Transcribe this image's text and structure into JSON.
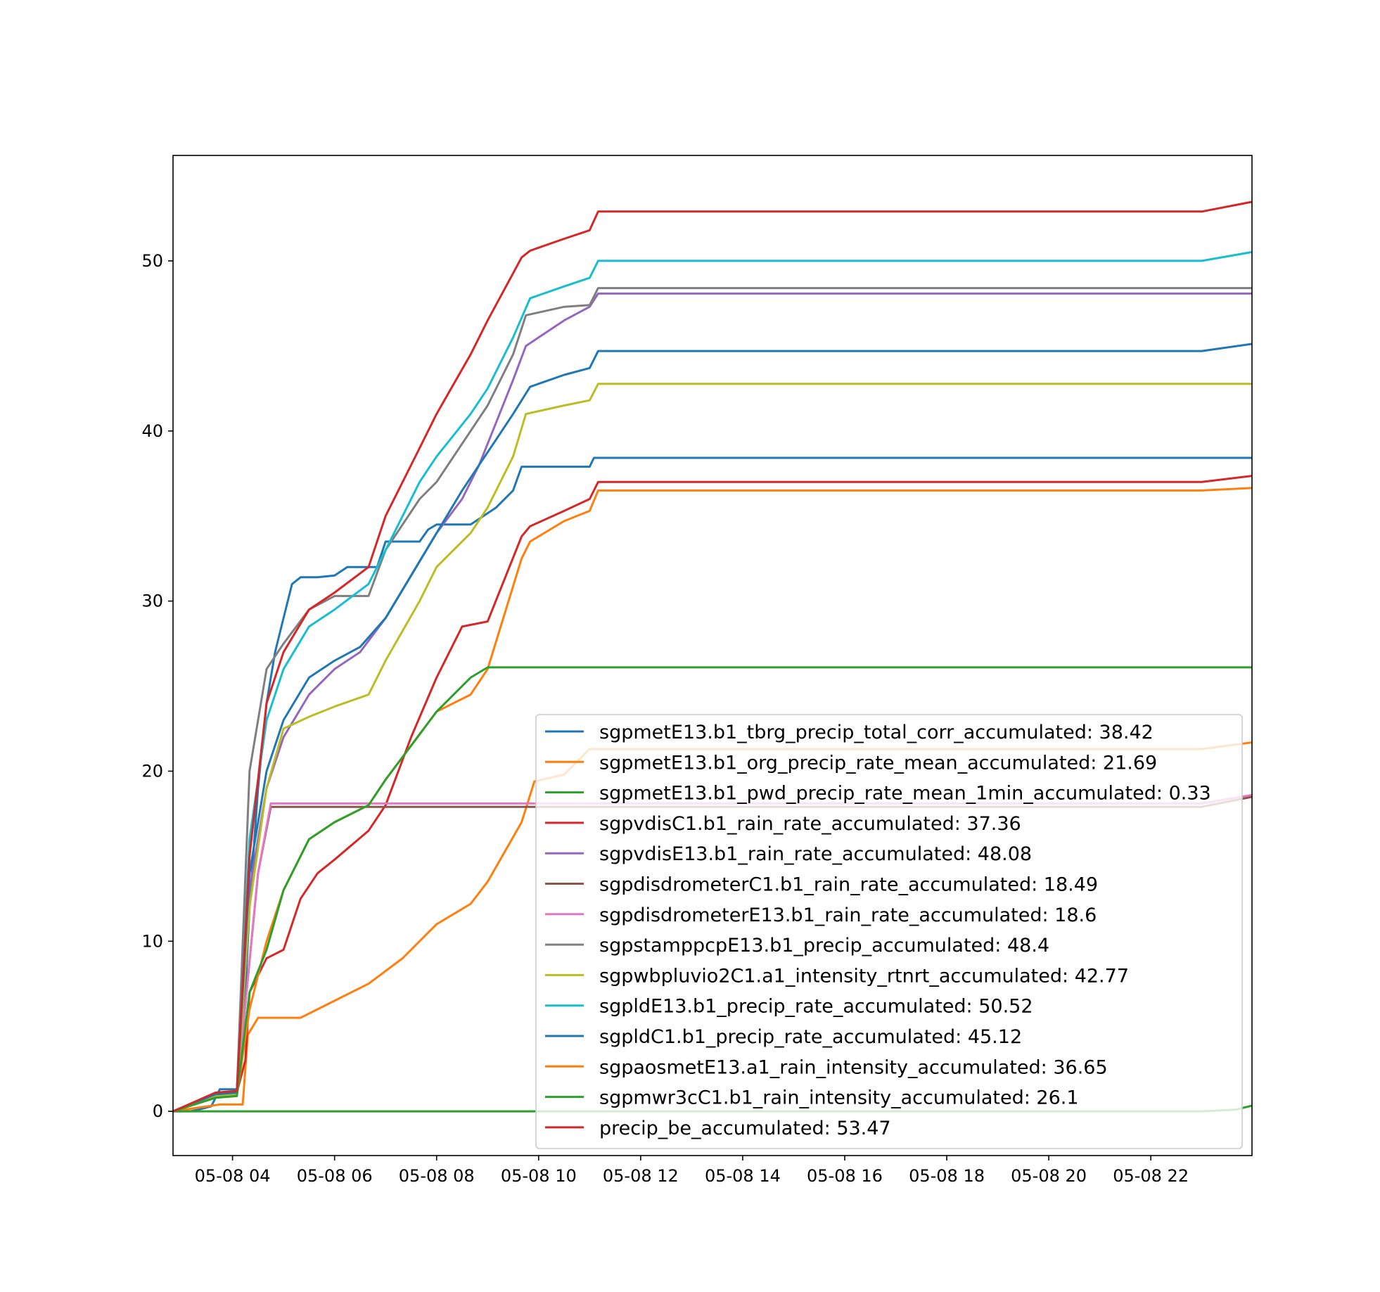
{
  "chart_data": {
    "type": "line",
    "title": "",
    "xlabel": "",
    "ylabel": "",
    "xlim": [
      "2024-05-08 02:50",
      "2024-05-08 23:59"
    ],
    "ylim": [
      -2.6,
      56.2
    ],
    "x_tick_labels": [
      "05-08 04",
      "05-08 06",
      "05-08 08",
      "05-08 10",
      "05-08 12",
      "05-08 14",
      "05-08 16",
      "05-08 18",
      "05-08 20",
      "05-08 22"
    ],
    "x_ticks": [
      "2024-05-08 04:00",
      "2024-05-08 06:00",
      "2024-05-08 08:00",
      "2024-05-08 10:00",
      "2024-05-08 12:00",
      "2024-05-08 14:00",
      "2024-05-08 16:00",
      "2024-05-08 18:00",
      "2024-05-08 20:00",
      "2024-05-08 22:00"
    ],
    "y_ticks": [
      0,
      10,
      20,
      30,
      40,
      50
    ],
    "y_tick_labels": [
      "0",
      "10",
      "20",
      "30",
      "40",
      "50"
    ],
    "grid": false,
    "legend_position": "lower-right",
    "series": [
      {
        "name": "sgpmetE13.b1_tbrg_precip_total_corr_accumulated: 38.42",
        "color": "#1f77b4",
        "x": [
          "2024-05-08 02:50",
          "2024-05-08 03:10",
          "2024-05-08 03:20",
          "2024-05-08 03:35",
          "2024-05-08 03:45",
          "2024-05-08 04:05",
          "2024-05-08 04:12",
          "2024-05-08 04:20",
          "2024-05-08 04:30",
          "2024-05-08 04:40",
          "2024-05-08 04:50",
          "2024-05-08 05:00",
          "2024-05-08 05:10",
          "2024-05-08 05:20",
          "2024-05-08 05:40",
          "2024-05-08 06:00",
          "2024-05-08 06:15",
          "2024-05-08 06:50",
          "2024-05-08 07:00",
          "2024-05-08 07:40",
          "2024-05-08 07:50",
          "2024-05-08 08:00",
          "2024-05-08 08:40",
          "2024-05-08 08:55",
          "2024-05-08 09:10",
          "2024-05-08 09:30",
          "2024-05-08 09:40",
          "2024-05-08 11:00",
          "2024-05-08 11:05",
          "2024-05-08 23:59"
        ],
        "y": [
          0,
          0,
          0.1,
          0.3,
          1.3,
          1.3,
          4,
          12,
          19,
          24,
          27,
          29,
          31,
          31.4,
          31.4,
          31.5,
          32,
          32,
          33.5,
          33.5,
          34.2,
          34.5,
          34.5,
          35,
          35.5,
          36.5,
          37.9,
          37.9,
          38.42,
          38.42
        ]
      },
      {
        "name": "sgpmetE13.b1_org_precip_rate_mean_accumulated: 21.69",
        "color": "#ff7f0e",
        "x": [
          "2024-05-08 02:50",
          "2024-05-08 03:45",
          "2024-05-08 04:12",
          "2024-05-08 04:18",
          "2024-05-08 04:30",
          "2024-05-08 05:20",
          "2024-05-08 06:00",
          "2024-05-08 06:40",
          "2024-05-08 07:20",
          "2024-05-08 08:00",
          "2024-05-08 08:40",
          "2024-05-08 09:00",
          "2024-05-08 09:40",
          "2024-05-08 09:55",
          "2024-05-08 10:30",
          "2024-05-08 11:00",
          "2024-05-08 12:00",
          "2024-05-08 23:00",
          "2024-05-08 23:59"
        ],
        "y": [
          0,
          0.4,
          0.4,
          4.5,
          5.5,
          5.5,
          6.5,
          7.5,
          9,
          11,
          12.2,
          13.5,
          17,
          19.4,
          19.8,
          21.3,
          21.3,
          21.3,
          21.69
        ]
      },
      {
        "name": "sgpmetE13.b1_pwd_precip_rate_mean_1min_accumulated: 0.33",
        "color": "#2ca02c",
        "x": [
          "2024-05-08 02:50",
          "2024-05-08 23:00",
          "2024-05-08 23:40",
          "2024-05-08 23:59"
        ],
        "y": [
          0,
          0,
          0.1,
          0.33
        ]
      },
      {
        "name": "sgpvdisC1.b1_rain_rate_accumulated: 37.36",
        "color": "#d62728",
        "x": [
          "2024-05-08 02:50",
          "2024-05-08 03:40",
          "2024-05-08 04:05",
          "2024-05-08 04:15",
          "2024-05-08 04:20",
          "2024-05-08 04:40",
          "2024-05-08 05:00",
          "2024-05-08 05:20",
          "2024-05-08 05:40",
          "2024-05-08 06:00",
          "2024-05-08 06:40",
          "2024-05-08 07:00",
          "2024-05-08 07:30",
          "2024-05-08 08:00",
          "2024-05-08 08:30",
          "2024-05-08 09:00",
          "2024-05-08 09:40",
          "2024-05-08 09:50",
          "2024-05-08 10:30",
          "2024-05-08 11:00",
          "2024-05-08 11:10",
          "2024-05-08 23:00",
          "2024-05-08 23:59"
        ],
        "y": [
          0,
          1,
          1.1,
          3,
          7,
          9,
          9.5,
          12.5,
          14,
          14.8,
          16.5,
          18,
          22,
          25.5,
          28.5,
          28.8,
          33.8,
          34.4,
          35.3,
          36,
          37,
          37,
          37.36
        ]
      },
      {
        "name": "sgpvdisE13.b1_rain_rate_accumulated: 48.08",
        "color": "#9467bd",
        "x": [
          "2024-05-08 02:50",
          "2024-05-08 03:40",
          "2024-05-08 04:05",
          "2024-05-08 04:20",
          "2024-05-08 04:40",
          "2024-05-08 05:00",
          "2024-05-08 05:30",
          "2024-05-08 06:00",
          "2024-05-08 06:30",
          "2024-05-08 07:00",
          "2024-05-08 07:30",
          "2024-05-08 08:00",
          "2024-05-08 08:30",
          "2024-05-08 08:50",
          "2024-05-08 09:10",
          "2024-05-08 09:30",
          "2024-05-08 09:45",
          "2024-05-08 10:00",
          "2024-05-08 10:30",
          "2024-05-08 11:00",
          "2024-05-08 11:10",
          "2024-05-08 23:59"
        ],
        "y": [
          0,
          1,
          1.1,
          13,
          19,
          22,
          24.5,
          26,
          27,
          29,
          31.5,
          34,
          36,
          38,
          40.5,
          43,
          45,
          45.5,
          46.5,
          47.3,
          48.08,
          48.08
        ]
      },
      {
        "name": "sgpdisdrometerC1.b1_rain_rate_accumulated: 18.49",
        "color": "#8c564b",
        "x": [
          "2024-05-08 02:50",
          "2024-05-08 03:40",
          "2024-05-08 04:05",
          "2024-05-08 04:30",
          "2024-05-08 04:45",
          "2024-05-08 23:00",
          "2024-05-08 23:59"
        ],
        "y": [
          0,
          1,
          1.1,
          14,
          17.9,
          17.9,
          18.49
        ]
      },
      {
        "name": "sgpdisdrometerE13.b1_rain_rate_accumulated: 18.6",
        "color": "#e377c2",
        "x": [
          "2024-05-08 02:50",
          "2024-05-08 03:40",
          "2024-05-08 04:05",
          "2024-05-08 04:30",
          "2024-05-08 04:45",
          "2024-05-08 23:00",
          "2024-05-08 23:59"
        ],
        "y": [
          0,
          1,
          1.1,
          14,
          18.1,
          18.1,
          18.6
        ]
      },
      {
        "name": "sgpstamppcpE13.b1_precip_accumulated: 48.4",
        "color": "#7f7f7f",
        "x": [
          "2024-05-08 02:50",
          "2024-05-08 03:40",
          "2024-05-08 04:05",
          "2024-05-08 04:20",
          "2024-05-08 04:40",
          "2024-05-08 05:00",
          "2024-05-08 05:30",
          "2024-05-08 06:00",
          "2024-05-08 06:40",
          "2024-05-08 07:00",
          "2024-05-08 07:40",
          "2024-05-08 08:00",
          "2024-05-08 08:40",
          "2024-05-08 09:00",
          "2024-05-08 09:30",
          "2024-05-08 09:45",
          "2024-05-08 10:30",
          "2024-05-08 11:00",
          "2024-05-08 11:10",
          "2024-05-08 23:59"
        ],
        "y": [
          0,
          1,
          1.1,
          20,
          26,
          27.5,
          29.5,
          30.3,
          30.3,
          33,
          36,
          37,
          40,
          41.5,
          44.5,
          46.8,
          47.3,
          47.4,
          48.4,
          48.4
        ]
      },
      {
        "name": "sgpwbpluvio2C1.a1_intensity_rtnrt_accumulated: 42.77",
        "color": "#bcbd22",
        "x": [
          "2024-05-08 02:50",
          "2024-05-08 03:40",
          "2024-05-08 04:05",
          "2024-05-08 04:20",
          "2024-05-08 04:40",
          "2024-05-08 05:00",
          "2024-05-08 05:30",
          "2024-05-08 06:00",
          "2024-05-08 06:40",
          "2024-05-08 07:00",
          "2024-05-08 07:40",
          "2024-05-08 08:00",
          "2024-05-08 08:40",
          "2024-05-08 09:00",
          "2024-05-08 09:30",
          "2024-05-08 09:45",
          "2024-05-08 10:30",
          "2024-05-08 11:00",
          "2024-05-08 11:10",
          "2024-05-08 23:59"
        ],
        "y": [
          0,
          0.9,
          1,
          12,
          19,
          22.5,
          23.2,
          23.8,
          24.5,
          26.5,
          30,
          32,
          34,
          35.5,
          38.5,
          41,
          41.5,
          41.8,
          42.77,
          42.77
        ]
      },
      {
        "name": "sgpldE13.b1_precip_rate_accumulated: 50.52",
        "color": "#17becf",
        "x": [
          "2024-05-08 02:50",
          "2024-05-08 03:40",
          "2024-05-08 04:05",
          "2024-05-08 04:20",
          "2024-05-08 04:40",
          "2024-05-08 05:00",
          "2024-05-08 05:30",
          "2024-05-08 06:00",
          "2024-05-08 06:40",
          "2024-05-08 07:00",
          "2024-05-08 07:40",
          "2024-05-08 08:00",
          "2024-05-08 08:40",
          "2024-05-08 09:00",
          "2024-05-08 09:30",
          "2024-05-08 09:50",
          "2024-05-08 10:30",
          "2024-05-08 11:00",
          "2024-05-08 11:10",
          "2024-05-08 23:00",
          "2024-05-08 23:59"
        ],
        "y": [
          0,
          1,
          1.1,
          16,
          23,
          26,
          28.5,
          29.5,
          31,
          33,
          37,
          38.5,
          41,
          42.5,
          45.5,
          47.8,
          48.5,
          49,
          50,
          50,
          50.52
        ]
      },
      {
        "name": "sgpldC1.b1_precip_rate_accumulated: 45.12",
        "color": "#1f77b4",
        "x": [
          "2024-05-08 02:50",
          "2024-05-08 03:40",
          "2024-05-08 04:05",
          "2024-05-08 04:20",
          "2024-05-08 04:40",
          "2024-05-08 05:00",
          "2024-05-08 05:30",
          "2024-05-08 06:00",
          "2024-05-08 06:30",
          "2024-05-08 07:00",
          "2024-05-08 07:30",
          "2024-05-08 08:00",
          "2024-05-08 08:30",
          "2024-05-08 08:50",
          "2024-05-08 09:10",
          "2024-05-08 09:30",
          "2024-05-08 09:50",
          "2024-05-08 10:30",
          "2024-05-08 11:00",
          "2024-05-08 11:10",
          "2024-05-08 23:00",
          "2024-05-08 23:59"
        ],
        "y": [
          0,
          1,
          1.1,
          14,
          20,
          23,
          25.5,
          26.5,
          27.3,
          29,
          31.5,
          34,
          36.5,
          38,
          39.5,
          41,
          42.6,
          43.3,
          43.7,
          44.7,
          44.7,
          45.12
        ]
      },
      {
        "name": "sgpaosmetE13.a1_rain_intensity_accumulated: 36.65",
        "color": "#ff7f0e",
        "x": [
          "2024-05-08 02:50",
          "2024-05-08 03:40",
          "2024-05-08 04:05",
          "2024-05-08 04:20",
          "2024-05-08 04:40",
          "2024-05-08 05:00",
          "2024-05-08 05:30",
          "2024-05-08 06:00",
          "2024-05-08 06:40",
          "2024-05-08 07:00",
          "2024-05-08 07:30",
          "2024-05-08 08:00",
          "2024-05-08 08:40",
          "2024-05-08 09:00",
          "2024-05-08 09:40",
          "2024-05-08 09:50",
          "2024-05-08 10:30",
          "2024-05-08 11:00",
          "2024-05-08 11:10",
          "2024-05-08 23:00",
          "2024-05-08 23:59"
        ],
        "y": [
          0,
          0.8,
          0.9,
          6,
          10,
          13,
          16,
          17,
          18,
          19.5,
          21.5,
          23.5,
          24.5,
          26,
          32.5,
          33.5,
          34.7,
          35.3,
          36.5,
          36.5,
          36.65
        ]
      },
      {
        "name": "sgpmwr3cC1.b1_rain_intensity_accumulated: 26.1",
        "color": "#2ca02c",
        "x": [
          "2024-05-08 02:50",
          "2024-05-08 03:40",
          "2024-05-08 04:05",
          "2024-05-08 04:20",
          "2024-05-08 04:40",
          "2024-05-08 05:00",
          "2024-05-08 05:30",
          "2024-05-08 06:00",
          "2024-05-08 06:40",
          "2024-05-08 07:00",
          "2024-05-08 07:30",
          "2024-05-08 08:00",
          "2024-05-08 08:40",
          "2024-05-08 09:00",
          "2024-05-08 23:59"
        ],
        "y": [
          0,
          0.8,
          0.9,
          7,
          9.5,
          13,
          16,
          17,
          18,
          19.5,
          21.5,
          23.5,
          25.5,
          26.1,
          26.1
        ]
      },
      {
        "name": "precip_be_accumulated: 53.47",
        "color": "#d62728",
        "x": [
          "2024-05-08 02:50",
          "2024-05-08 03:40",
          "2024-05-08 04:05",
          "2024-05-08 04:20",
          "2024-05-08 04:40",
          "2024-05-08 05:00",
          "2024-05-08 05:30",
          "2024-05-08 06:00",
          "2024-05-08 06:40",
          "2024-05-08 07:00",
          "2024-05-08 07:40",
          "2024-05-08 08:00",
          "2024-05-08 08:40",
          "2024-05-08 09:00",
          "2024-05-08 09:40",
          "2024-05-08 09:50",
          "2024-05-08 10:30",
          "2024-05-08 11:00",
          "2024-05-08 11:10",
          "2024-05-08 23:00",
          "2024-05-08 23:59"
        ],
        "y": [
          0,
          1.1,
          1.2,
          15,
          24,
          27,
          29.5,
          30.5,
          32,
          35,
          39,
          41,
          44.5,
          46.5,
          50.2,
          50.6,
          51.3,
          51.8,
          52.9,
          52.9,
          53.47
        ]
      }
    ]
  }
}
